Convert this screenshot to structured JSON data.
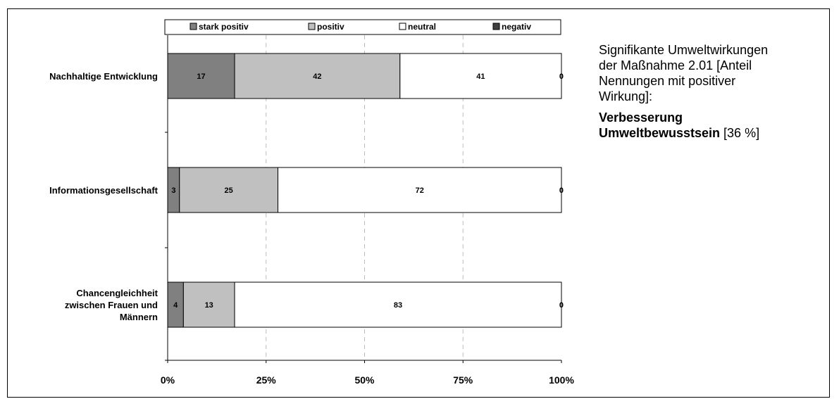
{
  "chart_data": {
    "type": "bar",
    "orientation": "horizontal",
    "stacked": true,
    "categories": [
      [
        "Nachhaltige Entwicklung"
      ],
      [
        "Informationsgesellschaft"
      ],
      [
        "Chancengleichheit",
        "zwischen Frauen und",
        "Männern"
      ]
    ],
    "series": [
      {
        "name": "stark positiv",
        "color": "#808080",
        "values": [
          17,
          3,
          4
        ]
      },
      {
        "name": "positiv",
        "color": "#c0c0c0",
        "values": [
          42,
          25,
          13
        ]
      },
      {
        "name": "neutral",
        "color": "#ffffff",
        "values": [
          41,
          72,
          83
        ]
      },
      {
        "name": "negativ",
        "color": "#404040",
        "values": [
          0,
          0,
          0
        ]
      }
    ],
    "value_labels": [
      [
        "17",
        "3",
        "4"
      ],
      [
        "42",
        "25",
        "13"
      ],
      [
        "41",
        "72",
        "83"
      ],
      [
        "0",
        "0",
        "0"
      ]
    ],
    "xlim": [
      0,
      100
    ],
    "x_ticks": [
      "0%",
      "25%",
      "50%",
      "75%",
      "100%"
    ],
    "grid": "vertical dashed",
    "legend": "top"
  },
  "side_note": {
    "line1": "Signifikante Umweltwirkungen",
    "line2": "der Maßnahme 2.01 [Anteil",
    "line3": "Nennungen mit positiver",
    "line4": "Wirkung]:",
    "highlight_bold1": "Verbesserung",
    "highlight_bold2": "Umweltbewusstsein",
    "highlight_tail": " [36 %]"
  }
}
